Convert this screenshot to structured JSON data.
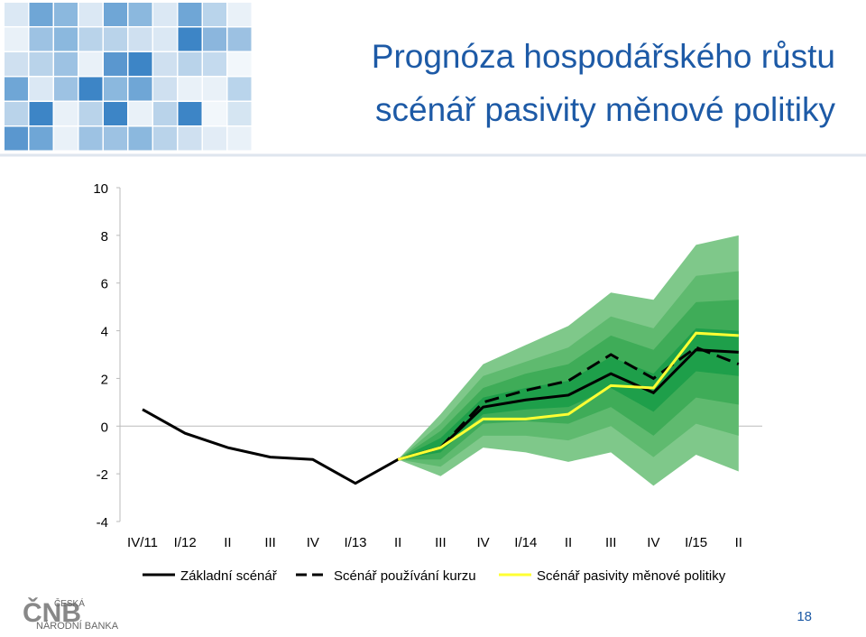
{
  "header": {
    "title_line1": "Prognóza hospodářského růstu",
    "title_line2": "scénář pasivity měnové politiky"
  },
  "footer": {
    "logo": "ČNB",
    "logo_line1": "ČESKÁ",
    "logo_line2": "NÁRODNÍ BANKA",
    "page_number": "18"
  },
  "chart_data": {
    "type": "line",
    "categories": [
      "IV/11",
      "I/12",
      "II",
      "III",
      "IV",
      "I/13",
      "II",
      "III",
      "IV",
      "I/14",
      "II",
      "III",
      "IV",
      "I/15",
      "II"
    ],
    "ylim": [
      -4,
      10
    ],
    "yticks": [
      -4,
      -2,
      0,
      2,
      4,
      6,
      8,
      10
    ],
    "series": [
      {
        "name": "Základní scénář",
        "color": "#000000",
        "style": "solid",
        "values": [
          0.7,
          -0.3,
          -0.9,
          -1.3,
          -1.4,
          -2.4,
          -1.4,
          -0.9,
          0.8,
          1.1,
          1.3,
          2.2,
          1.4,
          3.2,
          3.1
        ]
      },
      {
        "name": "Scénář používání kurzu",
        "color": "#000000",
        "style": "dashed",
        "values": [
          null,
          null,
          null,
          null,
          null,
          null,
          -1.4,
          -0.9,
          1.0,
          1.5,
          1.9,
          3.0,
          2.0,
          3.3,
          2.6
        ]
      },
      {
        "name": "Scénář pasivity měnové politiky",
        "color": "#ffff33",
        "style": "solid",
        "values": [
          null,
          null,
          null,
          null,
          null,
          null,
          -1.4,
          -0.9,
          0.3,
          0.3,
          0.5,
          1.7,
          1.6,
          3.9,
          3.8
        ]
      }
    ],
    "bands": [
      {
        "color": "#7fc88a",
        "lower": [
          null,
          null,
          null,
          null,
          null,
          null,
          -1.4,
          -2.1,
          -0.9,
          -1.1,
          -1.5,
          -1.1,
          -2.5,
          -1.2,
          -1.9
        ],
        "upper": [
          null,
          null,
          null,
          null,
          null,
          null,
          -1.4,
          0.5,
          2.6,
          3.4,
          4.2,
          5.6,
          5.3,
          7.6,
          8.0
        ]
      },
      {
        "color": "#5fba6f",
        "lower": [
          null,
          null,
          null,
          null,
          null,
          null,
          -1.4,
          -1.7,
          -0.4,
          -0.4,
          -0.6,
          0.0,
          -1.3,
          0.1,
          -0.4
        ],
        "upper": [
          null,
          null,
          null,
          null,
          null,
          null,
          -1.4,
          0.1,
          2.1,
          2.7,
          3.3,
          4.6,
          4.1,
          6.3,
          6.5
        ]
      },
      {
        "color": "#3fac58",
        "lower": [
          null,
          null,
          null,
          null,
          null,
          null,
          -1.4,
          -1.4,
          0.1,
          0.2,
          0.1,
          0.8,
          -0.4,
          1.2,
          0.9
        ],
        "upper": [
          null,
          null,
          null,
          null,
          null,
          null,
          -1.4,
          -0.2,
          1.6,
          2.2,
          2.6,
          3.8,
          3.2,
          5.2,
          5.3
        ]
      },
      {
        "color": "#1e9f4a",
        "lower": [
          null,
          null,
          null,
          null,
          null,
          null,
          -1.4,
          -1.1,
          0.5,
          0.7,
          0.8,
          1.6,
          0.6,
          2.3,
          2.1
        ],
        "upper": [
          null,
          null,
          null,
          null,
          null,
          null,
          -1.4,
          -0.5,
          1.2,
          1.6,
          1.9,
          2.9,
          2.2,
          4.1,
          4.0
        ]
      }
    ]
  }
}
